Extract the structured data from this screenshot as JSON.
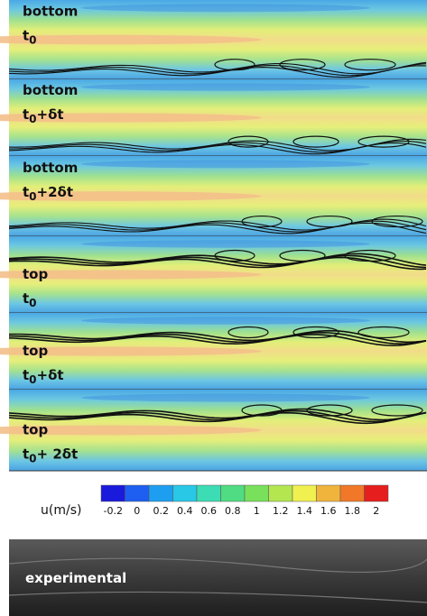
{
  "panels": [
    {
      "label": "bottom",
      "time": {
        "base": "t",
        "sub": "0"
      }
    },
    {
      "label": "bottom",
      "time": {
        "base": "t",
        "sub": "0",
        "rest": "+δt"
      }
    },
    {
      "label": "bottom",
      "time": {
        "base": "t",
        "sub": "0",
        "rest": "+2δt"
      }
    },
    {
      "label": "top",
      "time": {
        "base": "t",
        "sub": "0"
      }
    },
    {
      "label": "top",
      "time": {
        "base": "t",
        "sub": "0",
        "rest": "+δt"
      }
    },
    {
      "label": "top",
      "time": {
        "base": "t",
        "sub": "0",
        "rest": "+ 2δt"
      }
    }
  ],
  "colorbar": {
    "label": "u(m/s)",
    "ticks": [
      -0.2,
      0,
      0.2,
      0.4,
      0.6,
      0.8,
      1,
      1.2,
      1.4,
      1.6,
      1.8,
      2
    ],
    "colors": [
      "#1a1adc",
      "#1e5ef0",
      "#1e9ef0",
      "#28c8e6",
      "#3cdcb4",
      "#50dc82",
      "#78e05a",
      "#b4e650",
      "#f0f050",
      "#f0b43c",
      "#f07828",
      "#e61e1e"
    ]
  },
  "experimental": {
    "label": "experimental"
  }
}
